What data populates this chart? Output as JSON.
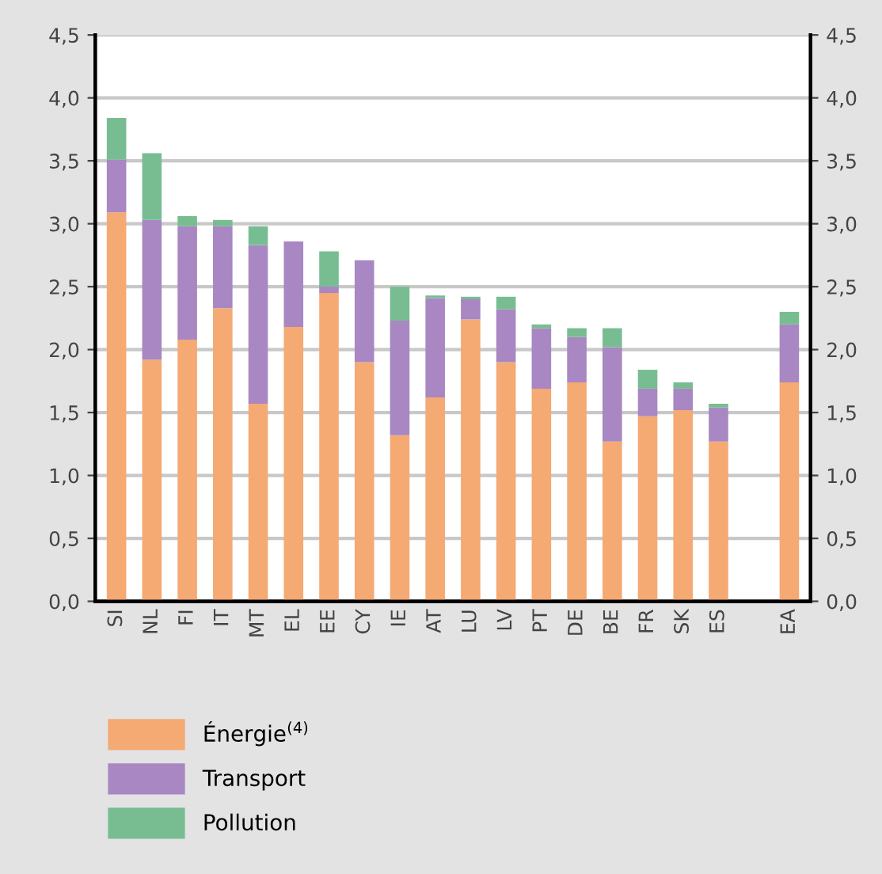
{
  "chart_data": {
    "type": "bar",
    "stacked": true,
    "categories": [
      "SI",
      "NL",
      "FI",
      "IT",
      "MT",
      "EL",
      "EE",
      "CY",
      "IE",
      "AT",
      "LU",
      "LV",
      "PT",
      "DE",
      "BE",
      "FR",
      "SK",
      "ES",
      null,
      "EA"
    ],
    "series": [
      {
        "name": "Énergie$^{(4)}$",
        "color": "#f5a973",
        "values": [
          3.09,
          1.92,
          2.08,
          2.33,
          1.57,
          2.18,
          2.45,
          1.9,
          1.32,
          1.62,
          2.24,
          1.9,
          1.69,
          1.74,
          1.27,
          1.47,
          1.52,
          1.27,
          null,
          1.74
        ]
      },
      {
        "name": "Transport",
        "color": "#a887c2",
        "values": [
          0.42,
          1.11,
          0.9,
          0.65,
          1.26,
          0.68,
          0.05,
          0.81,
          0.91,
          0.79,
          0.16,
          0.42,
          0.48,
          0.36,
          0.75,
          0.22,
          0.17,
          0.27,
          null,
          0.46
        ]
      },
      {
        "name": "Pollution",
        "color": "#78bd92",
        "values": [
          0.33,
          0.53,
          0.08,
          0.05,
          0.15,
          0,
          0.28,
          0,
          0.27,
          0.02,
          0.02,
          0.1,
          0.03,
          0.07,
          0.15,
          0.15,
          0.05,
          0.03,
          null,
          0.1
        ]
      }
    ],
    "ylim": [
      0,
      4.5
    ],
    "yticks": [
      {
        "value": 0,
        "label": "0,0"
      },
      {
        "value": 0.5,
        "label": "0,5"
      },
      {
        "value": 1,
        "label": "1,0"
      },
      {
        "value": 1.5,
        "label": "1,5"
      },
      {
        "value": 2,
        "label": "2,0"
      },
      {
        "value": 2.5,
        "label": "2,5"
      },
      {
        "value": 3,
        "label": "3,0"
      },
      {
        "value": 3.5,
        "label": "3,5"
      },
      {
        "value": 4,
        "label": "4,0"
      },
      {
        "value": 4.5,
        "label": "4,5"
      }
    ],
    "y2lim": [
      0,
      4.5
    ],
    "y2ticks": [
      {
        "value": 0,
        "label": "0,0"
      },
      {
        "value": 0.5,
        "label": "0,5"
      },
      {
        "value": 1,
        "label": "1,0"
      },
      {
        "value": 1.5,
        "label": "1,5"
      },
      {
        "value": 2,
        "label": "2,0"
      },
      {
        "value": 2.5,
        "label": "2,5"
      },
      {
        "value": 3,
        "label": "3,0"
      },
      {
        "value": 3.5,
        "label": "3,5"
      },
      {
        "value": 4,
        "label": "4,0"
      },
      {
        "value": 4.5,
        "label": "4,5"
      }
    ],
    "grid": "y",
    "legend": "bottom"
  }
}
